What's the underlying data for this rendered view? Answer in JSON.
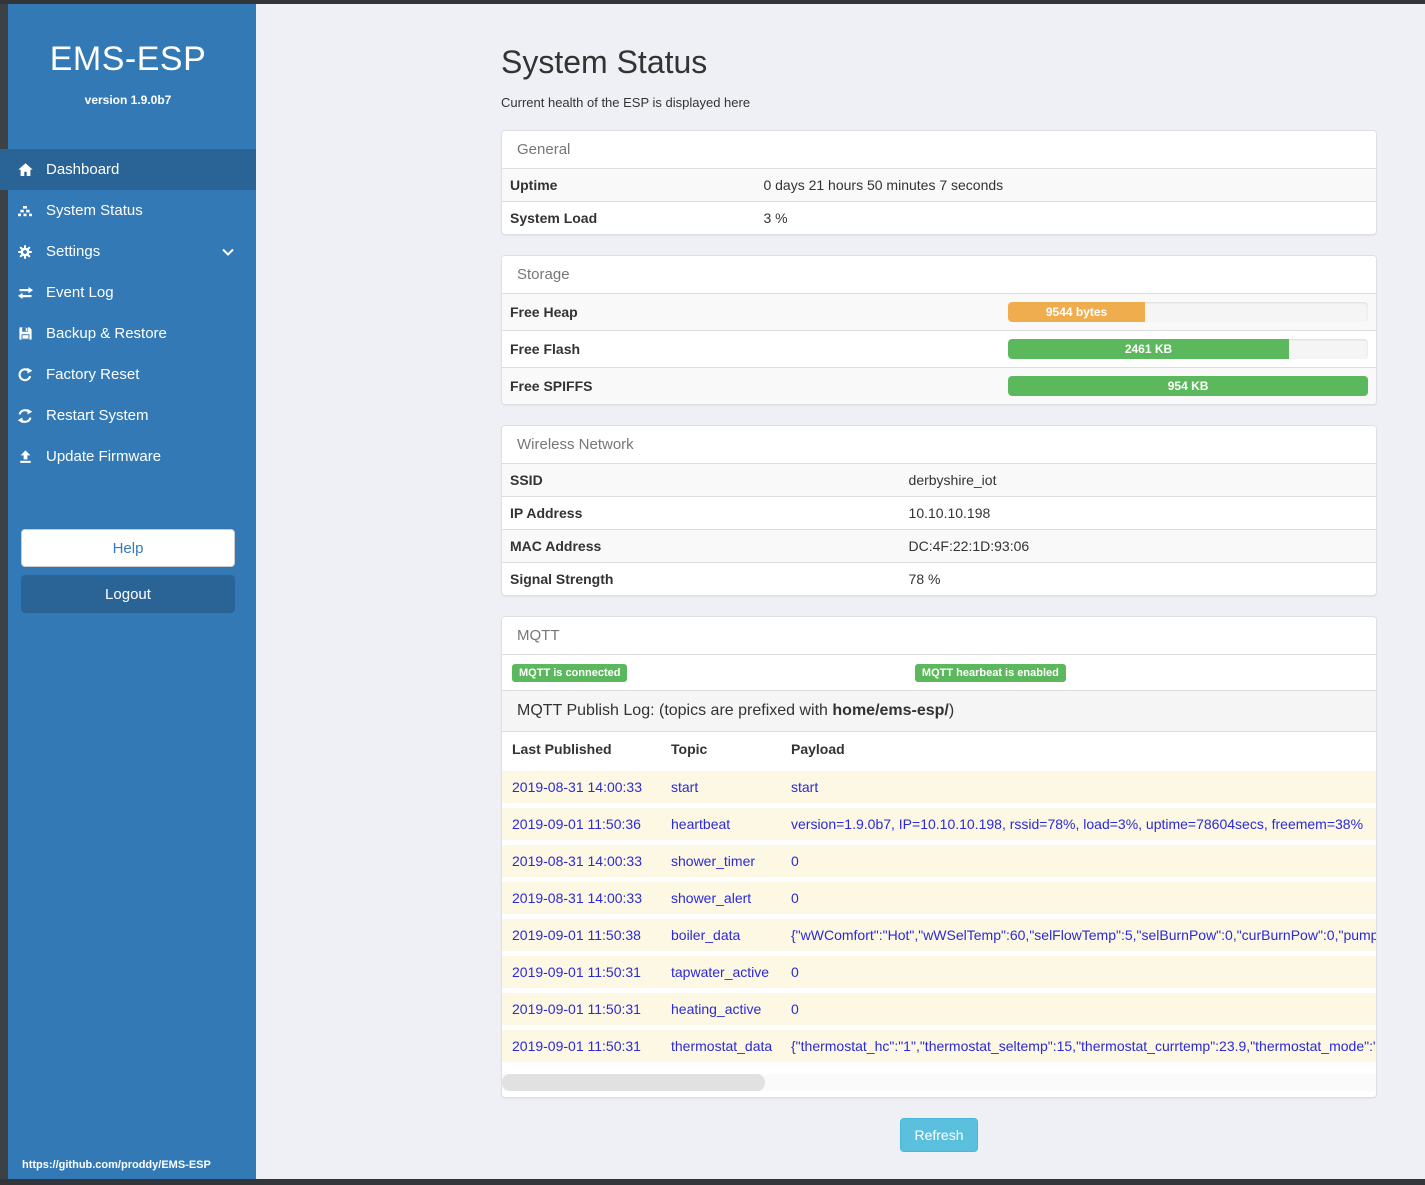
{
  "sidebar": {
    "title": "EMS-ESP",
    "version": "version 1.9.0b7",
    "items": [
      {
        "label": "Dashboard",
        "icon": "home-icon",
        "active": true
      },
      {
        "label": "System Status",
        "icon": "system-status-icon"
      },
      {
        "label": "Settings",
        "icon": "gear-icon",
        "chevron": "chevron-down-icon"
      },
      {
        "label": "Event Log",
        "icon": "exchange-icon"
      },
      {
        "label": "Backup & Restore",
        "icon": "save-icon"
      },
      {
        "label": "Factory Reset",
        "icon": "reset-icon"
      },
      {
        "label": "Restart System",
        "icon": "restart-icon"
      },
      {
        "label": "Update Firmware",
        "icon": "upload-icon"
      }
    ],
    "help_label": "Help",
    "logout_label": "Logout",
    "footer_url": "https://github.com/proddy/EMS-ESP"
  },
  "main": {
    "title": "System Status",
    "subtitle": "Current health of the ESP is displayed here",
    "general": {
      "heading": "General",
      "rows": [
        {
          "label": "Uptime",
          "value": "0 days 21 hours 50 minutes 7 seconds"
        },
        {
          "label": "System Load",
          "value": "3 %"
        }
      ]
    },
    "storage": {
      "heading": "Storage",
      "rows": [
        {
          "label": "Free Heap",
          "value": "9544 bytes",
          "percent": 38,
          "color": "#f0ad4e"
        },
        {
          "label": "Free Flash",
          "value": "2461 KB",
          "percent": 78,
          "color": "#5cb85c"
        },
        {
          "label": "Free SPIFFS",
          "value": "954 KB",
          "percent": 100,
          "color": "#5cb85c"
        }
      ]
    },
    "wireless": {
      "heading": "Wireless Network",
      "rows": [
        {
          "label": "SSID",
          "value": "derbyshire_iot"
        },
        {
          "label": "IP Address",
          "value": "10.10.10.198"
        },
        {
          "label": "MAC Address",
          "value": "DC:4F:22:1D:93:06"
        },
        {
          "label": "Signal Strength",
          "value": "78 %"
        }
      ]
    },
    "mqtt": {
      "heading": "MQTT",
      "badges": [
        "MQTT is connected",
        "MQTT hearbeat is enabled"
      ],
      "publish_log_prefix_text": "MQTT Publish Log: (topics are prefixed with ",
      "publish_log_bold": "home/ems-esp/",
      "publish_log_suffix": ")",
      "table": {
        "headers": [
          "Last Published",
          "Topic",
          "Payload"
        ],
        "rows": [
          [
            "2019-08-31 14:00:33",
            "start",
            "start"
          ],
          [
            "2019-09-01 11:50:36",
            "heartbeat",
            "version=1.9.0b7, IP=10.10.10.198, rssid=78%, load=3%, uptime=78604secs, freemem=38%"
          ],
          [
            "2019-08-31 14:00:33",
            "shower_timer",
            "0"
          ],
          [
            "2019-08-31 14:00:33",
            "shower_alert",
            "0"
          ],
          [
            "2019-09-01 11:50:38",
            "boiler_data",
            "{\"wWComfort\":\"Hot\",\"wWSelTemp\":60,\"selFlowTemp\":5,\"selBurnPow\":0,\"curBurnPow\":0,\"pump"
          ],
          [
            "2019-09-01 11:50:31",
            "tapwater_active",
            "0"
          ],
          [
            "2019-09-01 11:50:31",
            "heating_active",
            "0"
          ],
          [
            "2019-09-01 11:50:31",
            "thermostat_data",
            "{\"thermostat_hc\":\"1\",\"thermostat_seltemp\":15,\"thermostat_currtemp\":23.9,\"thermostat_mode\":\""
          ]
        ]
      }
    },
    "refresh_label": "Refresh"
  },
  "colors": {
    "sidebar": "#3379b6",
    "sidebar_active": "#2a6395",
    "accent_blue": "#337ab7",
    "progress_orange": "#f0ad4e",
    "progress_green": "#5cb85c",
    "badge_green": "#5cb85c",
    "mqtt_row_bg": "#fdf8e4",
    "mqtt_text": "#2a2ad7",
    "refresh_cyan": "#5bc0de"
  }
}
